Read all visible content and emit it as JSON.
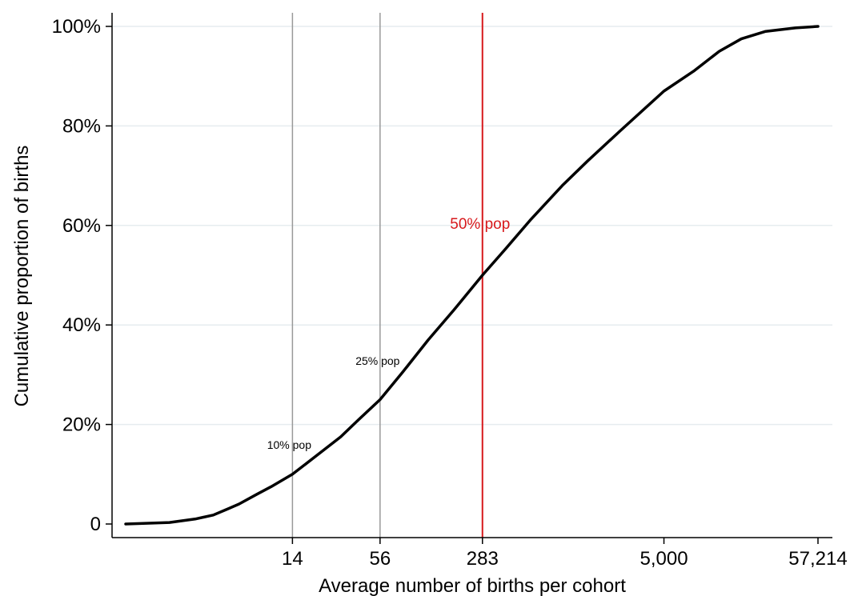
{
  "chart_data": {
    "type": "line",
    "xlabel": "Average number of births per cohort",
    "ylabel": "Cumulative proportion of births",
    "x_scale": "log",
    "xlim": [
      1,
      57214
    ],
    "ylim": [
      0,
      1
    ],
    "grid": true,
    "x_ticks": [
      {
        "value": 14,
        "label": "14"
      },
      {
        "value": 56,
        "label": "56"
      },
      {
        "value": 283,
        "label": "283"
      },
      {
        "value": 5000,
        "label": "5,000"
      },
      {
        "value": 57214,
        "label": "57,214"
      }
    ],
    "y_ticks": [
      {
        "value": 0,
        "label": "0"
      },
      {
        "value": 0.2,
        "label": "20%"
      },
      {
        "value": 0.4,
        "label": "40%"
      },
      {
        "value": 0.6,
        "label": "60%"
      },
      {
        "value": 0.8,
        "label": "80%"
      },
      {
        "value": 1.0,
        "label": "100%"
      }
    ],
    "series": [
      {
        "color": "#000000",
        "points": [
          [
            1,
            0.0
          ],
          [
            2,
            0.003
          ],
          [
            3,
            0.01
          ],
          [
            4,
            0.018
          ],
          [
            5,
            0.03
          ],
          [
            6,
            0.04
          ],
          [
            8,
            0.06
          ],
          [
            10,
            0.075
          ],
          [
            14,
            0.1
          ],
          [
            20,
            0.135
          ],
          [
            30,
            0.175
          ],
          [
            40,
            0.21
          ],
          [
            56,
            0.25
          ],
          [
            80,
            0.305
          ],
          [
            120,
            0.37
          ],
          [
            180,
            0.43
          ],
          [
            283,
            0.5
          ],
          [
            400,
            0.55
          ],
          [
            600,
            0.61
          ],
          [
            1000,
            0.68
          ],
          [
            1500,
            0.73
          ],
          [
            2500,
            0.79
          ],
          [
            5000,
            0.87
          ],
          [
            8000,
            0.91
          ],
          [
            12000,
            0.95
          ],
          [
            17000,
            0.975
          ],
          [
            25000,
            0.99
          ],
          [
            40000,
            0.997
          ],
          [
            57214,
            1.0
          ]
        ]
      }
    ],
    "reference_lines": [
      {
        "x": 14,
        "color": "#999999",
        "label": "10% pop"
      },
      {
        "x": 56,
        "color": "#999999",
        "label": "25% pop"
      },
      {
        "x": 283,
        "color": "#d7191c",
        "label": "50% pop"
      }
    ]
  }
}
